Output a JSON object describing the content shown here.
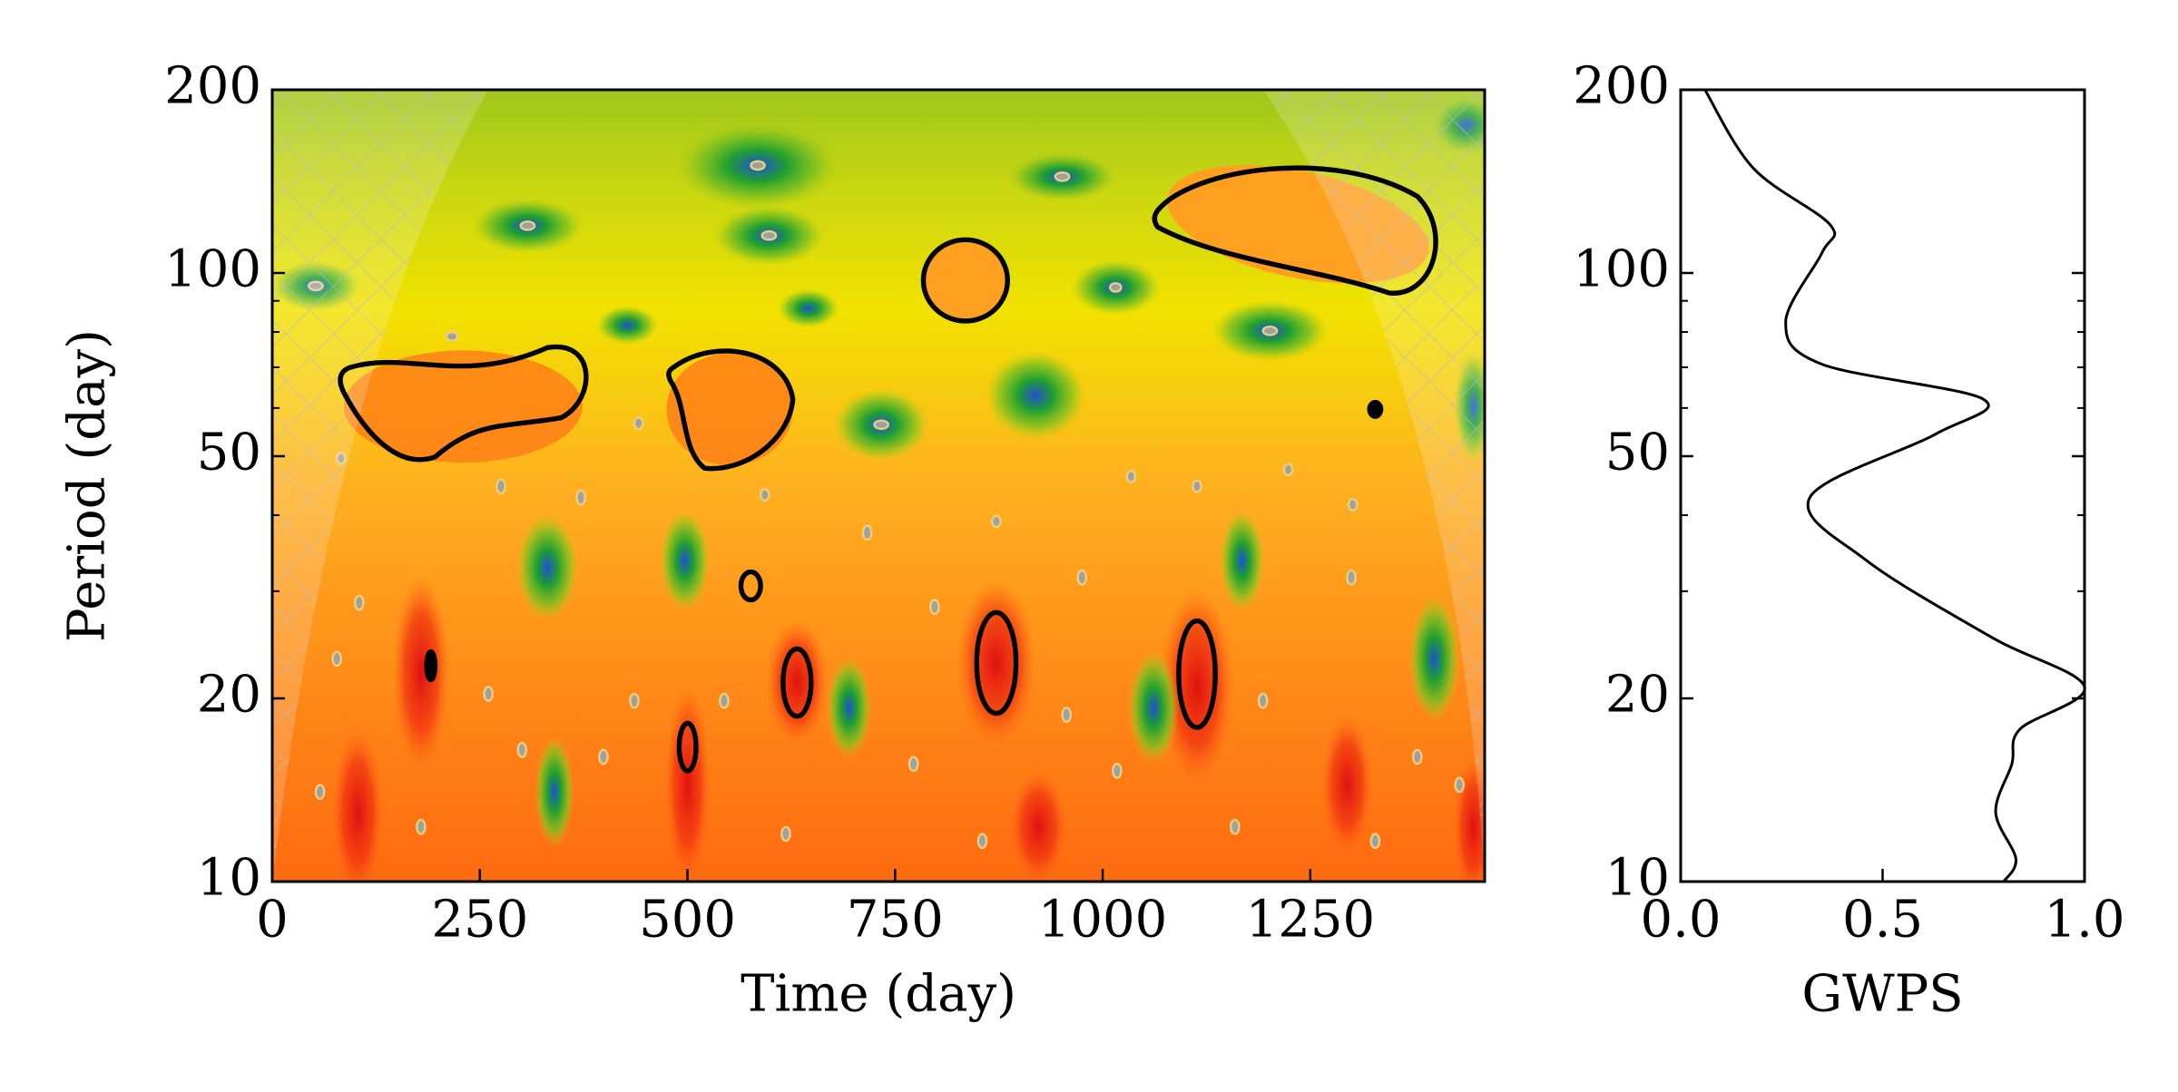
{
  "chart_data": [
    {
      "type": "wavelet",
      "xlabel": "Time (day)",
      "ylabel": "Period (day)",
      "xlim": [
        0,
        1460
      ],
      "xticks": [
        0,
        250,
        500,
        750,
        1000,
        1250
      ],
      "ylim": [
        10,
        200
      ],
      "yticks": [
        10,
        20,
        50,
        100,
        200
      ],
      "yminorticks": [
        30,
        40,
        60,
        70,
        80,
        90
      ],
      "yscale": "log"
    },
    {
      "type": "line",
      "xlabel": "GWPS",
      "color": "#000000",
      "xlim": [
        0,
        1
      ],
      "xticks": [
        {
          "value": 0,
          "label": "0.0"
        },
        0.5,
        {
          "value": 1,
          "label": "1.0"
        }
      ],
      "ylim": [
        10,
        200
      ],
      "yticks": [
        10,
        20,
        50,
        100,
        200
      ],
      "yminorticks": [
        30,
        40,
        60,
        70,
        80,
        90
      ],
      "yscale": "log",
      "period": [
        200,
        148.6,
        120,
        108,
        83,
        70.8,
        62,
        54.3,
        42.8,
        33.7,
        25.2,
        20.9,
        17.8,
        15.6,
        13.0,
        10.9,
        10
      ],
      "values": [
        0.06,
        0.18,
        0.37,
        0.35,
        0.26,
        0.35,
        0.75,
        0.63,
        0.32,
        0.46,
        0.77,
        1.0,
        0.84,
        0.82,
        0.78,
        0.83,
        0.8
      ]
    }
  ]
}
